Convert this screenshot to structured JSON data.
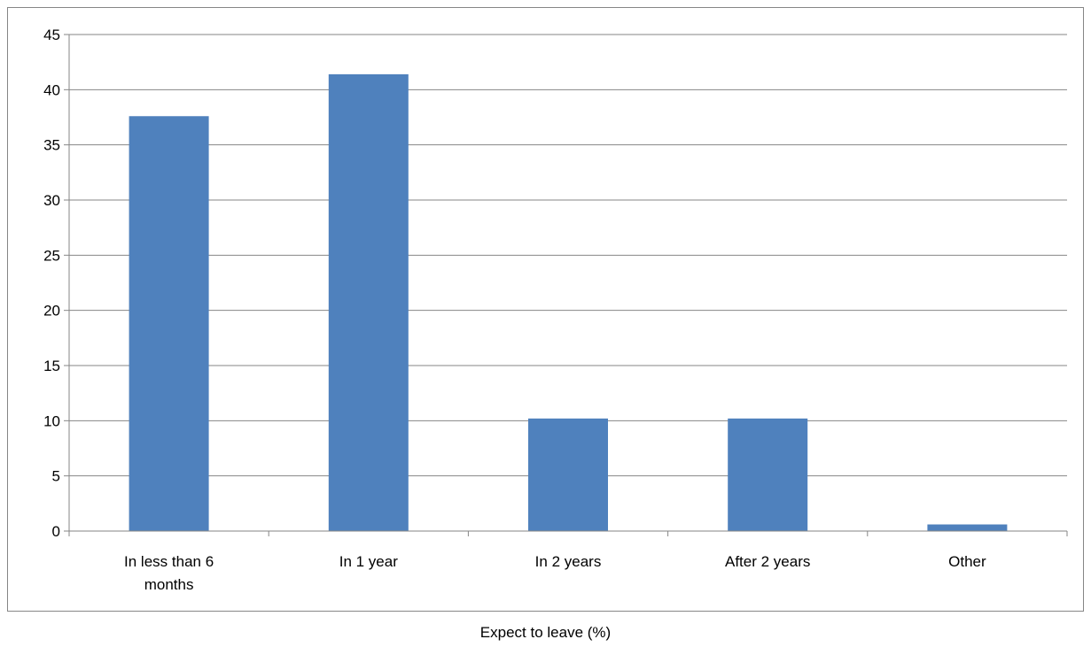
{
  "chart_data": {
    "type": "bar",
    "title": "",
    "xlabel": "Expect to leave (%)",
    "ylabel": "",
    "categories": [
      "In less than 6\nmonths",
      "In 1 year",
      "In 2 years",
      "After 2 years",
      "Other"
    ],
    "values": [
      37.6,
      41.4,
      10.2,
      10.2,
      0.6
    ],
    "ylim": [
      0,
      45
    ],
    "yticks": [
      0,
      5,
      10,
      15,
      20,
      25,
      30,
      35,
      40,
      45
    ],
    "grid": true,
    "legend": "none",
    "bar_color": "#4f81bd",
    "grid_color": "#868686"
  }
}
